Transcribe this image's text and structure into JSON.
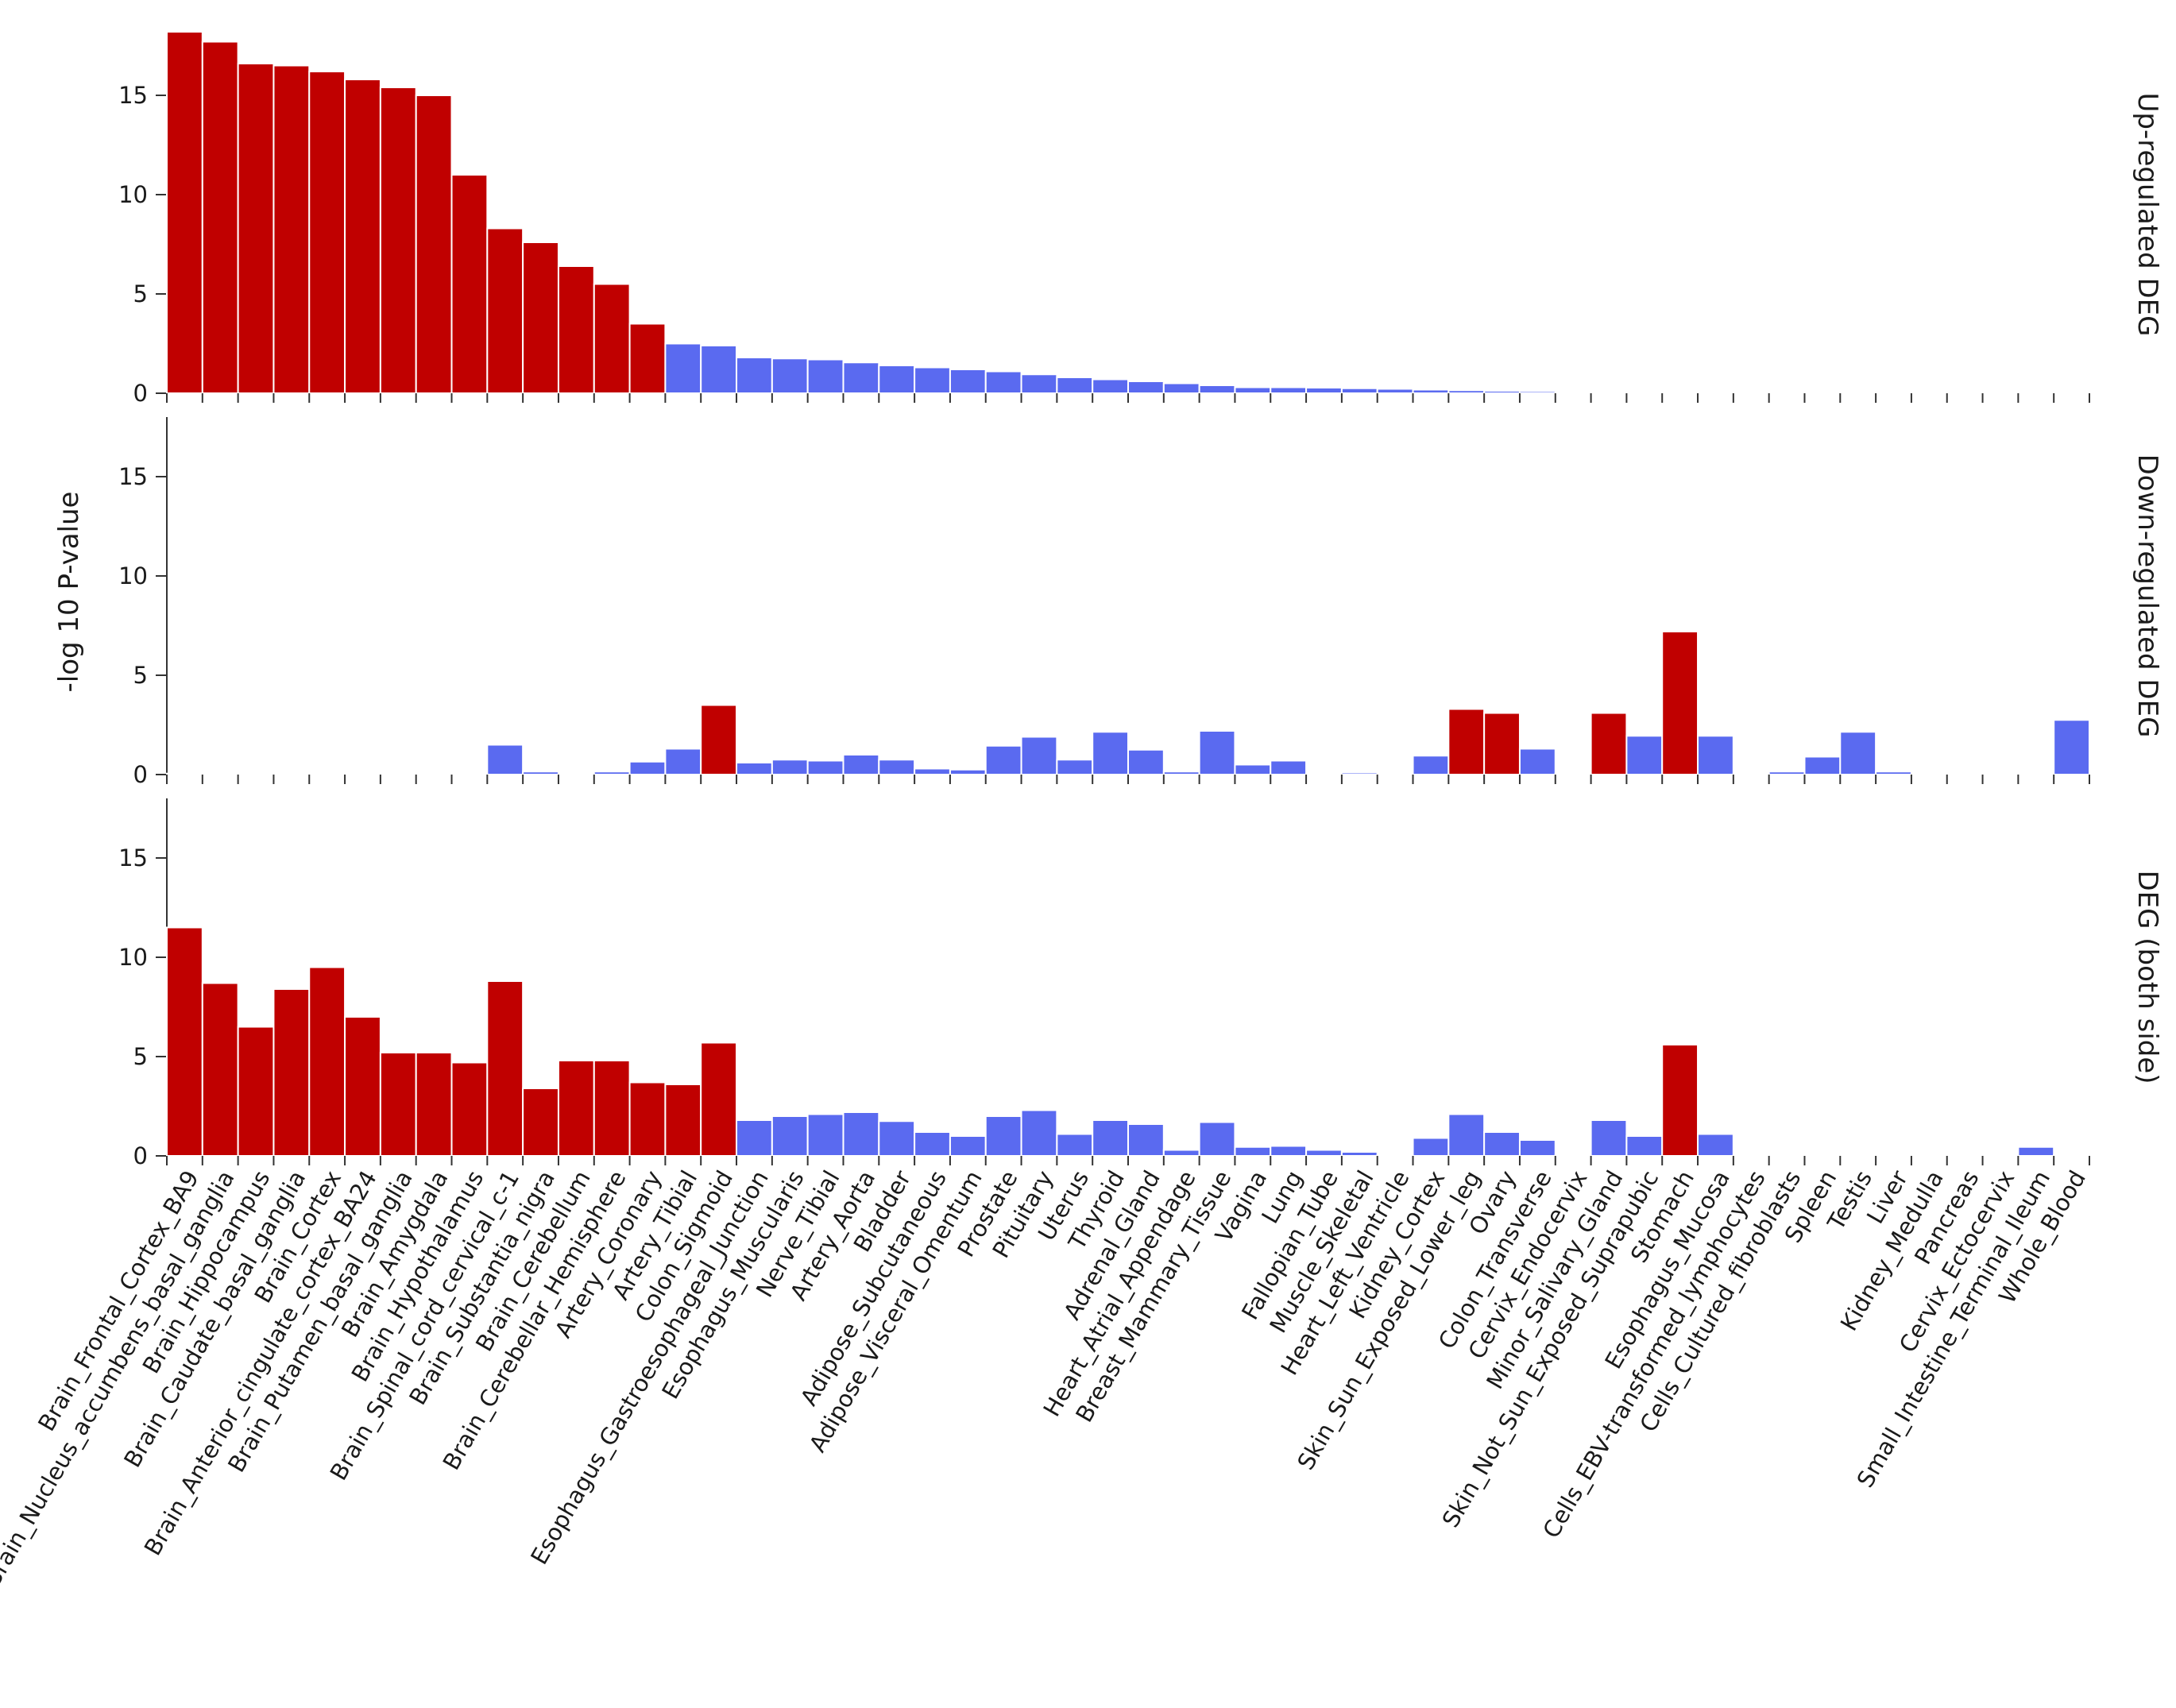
{
  "chart_data": {
    "type": "bar",
    "ylabel": "-log 10 P-value",
    "ylim": [
      0,
      18
    ],
    "yticks": [
      0,
      5,
      10,
      15
    ],
    "colors": {
      "significant": "#c00000",
      "not_significant": "#5a6af0"
    },
    "categories": [
      "Brain_Frontal_Cortex_BA9",
      "Brain_Nucleus_accumbens_basal_ganglia",
      "Brain_Hippocampus",
      "Brain_Caudate_basal_ganglia",
      "Brain_Cortex",
      "Brain_Anterior_cingulate_cortex_BA24",
      "Brain_Putamen_basal_ganglia",
      "Brain_Amygdala",
      "Brain_Hypothalamus",
      "Brain_Spinal_cord_cervical_c-1",
      "Brain_Substantia_nigra",
      "Brain_Cerebellum",
      "Brain_Cerebellar_Hemisphere",
      "Artery_Coronary",
      "Artery_Tibial",
      "Colon_Sigmoid",
      "Esophagus_Gastroesophageal_Junction",
      "Esophagus_Muscularis",
      "Nerve_Tibial",
      "Artery_Aorta",
      "Bladder",
      "Adipose_Subcutaneous",
      "Adipose_Visceral_Omentum",
      "Prostate",
      "Pituitary",
      "Uterus",
      "Thyroid",
      "Adrenal_Gland",
      "Heart_Atrial_Appendage",
      "Breast_Mammary_Tissue",
      "Vagina",
      "Lung",
      "Fallopian_Tube",
      "Muscle_Skeletal",
      "Heart_Left_Ventricle",
      "Kidney_Cortex",
      "Skin_Sun_Exposed_Lower_leg",
      "Ovary",
      "Colon_Transverse",
      "Cervix_Endocervix",
      "Minor_Salivary_Gland",
      "Skin_Not_Sun_Exposed_Suprapubic",
      "Stomach",
      "Esophagus_Mucosa",
      "Cells_EBV-transformed_lymphocytes",
      "Cells_Cultured_fibroblasts",
      "Spleen",
      "Testis",
      "Liver",
      "Kidney_Medulla",
      "Pancreas",
      "Cervix_Ectocervix",
      "Small_Intestine_Terminal_Ileum",
      "Whole_Blood"
    ],
    "series": [
      {
        "name": "Up-regulated DEG",
        "values": [
          18.2,
          17.7,
          16.6,
          16.5,
          16.2,
          15.8,
          15.4,
          15.0,
          11.0,
          8.3,
          7.6,
          6.4,
          5.5,
          3.5,
          2.5,
          2.4,
          1.8,
          1.75,
          1.7,
          1.55,
          1.4,
          1.3,
          1.2,
          1.1,
          0.95,
          0.8,
          0.7,
          0.6,
          0.5,
          0.4,
          0.3,
          0.3,
          0.28,
          0.25,
          0.22,
          0.18,
          0.15,
          0.12,
          0.1,
          0.08,
          0.07,
          0.06,
          0.05,
          0.04,
          0.03,
          0.03,
          0.02,
          0.02,
          0.01,
          0.01,
          0.01,
          0.01,
          0.01,
          0.01
        ],
        "significant": [
          true,
          true,
          true,
          true,
          true,
          true,
          true,
          true,
          true,
          true,
          true,
          true,
          true,
          true,
          false,
          false,
          false,
          false,
          false,
          false,
          false,
          false,
          false,
          false,
          false,
          false,
          false,
          false,
          false,
          false,
          false,
          false,
          false,
          false,
          false,
          false,
          false,
          false,
          false,
          false,
          false,
          false,
          false,
          false,
          false,
          false,
          false,
          false,
          false,
          false,
          false,
          false,
          false,
          false
        ]
      },
      {
        "name": "Down-regulated DEG",
        "values": [
          0.05,
          0.02,
          0.02,
          0.05,
          0.05,
          0.02,
          0.02,
          0.02,
          0.02,
          1.5,
          0.15,
          0.05,
          0.15,
          0.65,
          1.3,
          3.5,
          0.6,
          0.75,
          0.7,
          1.0,
          0.75,
          0.3,
          0.25,
          1.45,
          1.9,
          0.75,
          2.15,
          1.25,
          0.15,
          2.2,
          0.5,
          0.7,
          0.05,
          0.1,
          0.05,
          0.95,
          3.3,
          3.1,
          1.3,
          0.05,
          3.1,
          1.95,
          7.2,
          1.95,
          0.05,
          0.15,
          0.9,
          2.15,
          0.15,
          0.02,
          0.02,
          0.02,
          0.02,
          2.75
        ],
        "significant": [
          false,
          false,
          false,
          false,
          false,
          false,
          false,
          false,
          false,
          false,
          false,
          false,
          false,
          false,
          false,
          true,
          false,
          false,
          false,
          false,
          false,
          false,
          false,
          false,
          false,
          false,
          false,
          false,
          false,
          false,
          false,
          false,
          false,
          false,
          false,
          false,
          true,
          true,
          false,
          false,
          true,
          false,
          true,
          false,
          false,
          false,
          false,
          false,
          false,
          false,
          false,
          false,
          false,
          false
        ]
      },
      {
        "name": "DEG (both side)",
        "values": [
          11.5,
          8.7,
          6.5,
          8.4,
          9.5,
          7.0,
          5.2,
          5.2,
          4.7,
          8.8,
          3.4,
          4.8,
          4.8,
          3.7,
          3.6,
          5.7,
          1.8,
          2.0,
          2.1,
          2.2,
          1.75,
          1.2,
          1.0,
          2.0,
          2.3,
          1.1,
          1.8,
          1.6,
          0.3,
          1.7,
          0.45,
          0.5,
          0.3,
          0.2,
          0.05,
          0.9,
          2.1,
          1.2,
          0.8,
          0.05,
          1.8,
          1.0,
          5.6,
          1.1,
          0.02,
          0.02,
          0.05,
          0.02,
          0.02,
          0.02,
          0.02,
          0.02,
          0.45,
          0.02
        ],
        "significant": [
          true,
          true,
          true,
          true,
          true,
          true,
          true,
          true,
          true,
          true,
          true,
          true,
          true,
          true,
          true,
          true,
          false,
          false,
          false,
          false,
          false,
          false,
          false,
          false,
          false,
          false,
          false,
          false,
          false,
          false,
          false,
          false,
          false,
          false,
          false,
          false,
          false,
          false,
          false,
          false,
          false,
          false,
          true,
          false,
          false,
          false,
          false,
          false,
          false,
          false,
          false,
          false,
          false,
          false
        ]
      }
    ]
  }
}
